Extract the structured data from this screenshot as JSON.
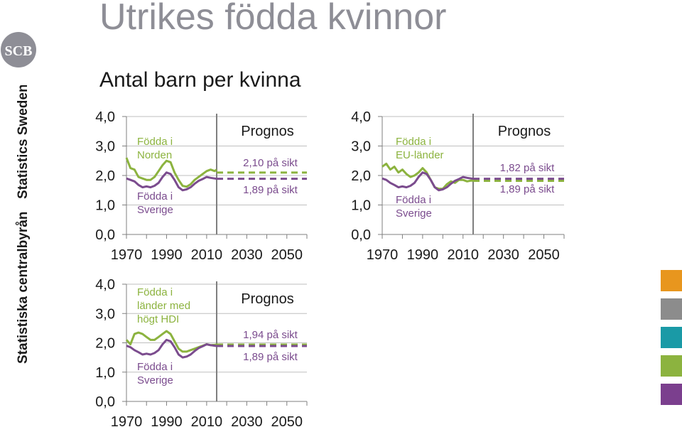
{
  "header": {
    "title": "Utrikes födda kvinnor",
    "subtitle": "Antal barn per kvinna"
  },
  "branding": {
    "logo_text": "SCB",
    "org_name_sv": "Statistiska centralbyrån",
    "org_name_en": "Statistics Sweden"
  },
  "colors": {
    "green": "#8cb33f",
    "purple": "#7b4c8e",
    "axis": "#7f7f7f",
    "grid": "#bfbfbf",
    "text": "#1a1a1a",
    "palette": [
      "#e8961e",
      "#8c8c8c",
      "#1a9aa6",
      "#8cb33f",
      "#7b3f8e"
    ]
  },
  "chart_data": [
    {
      "type": "line",
      "x_ticks": [
        "1970",
        "1990",
        "2010",
        "2030",
        "2050"
      ],
      "y_ticks": [
        "4,0",
        "3,0",
        "2,0",
        "1,0",
        "0,0"
      ],
      "ylim": [
        0,
        4
      ],
      "xlim": [
        1970,
        2060
      ],
      "forecast_start": 2015,
      "forecast_label": "Prognos",
      "series": [
        {
          "name": "Födda i Norden",
          "color": "green",
          "x": [
            1970,
            1972,
            1974,
            1976,
            1978,
            1980,
            1982,
            1984,
            1986,
            1988,
            1990,
            1992,
            1994,
            1996,
            1998,
            2000,
            2002,
            2004,
            2006,
            2008,
            2010,
            2012,
            2014,
            2015
          ],
          "y": [
            2.6,
            2.25,
            2.2,
            1.95,
            1.9,
            1.85,
            1.85,
            1.95,
            2.15,
            2.35,
            2.5,
            2.45,
            2.1,
            1.85,
            1.65,
            1.62,
            1.7,
            1.85,
            1.95,
            2.05,
            2.15,
            2.2,
            2.15,
            2.2
          ],
          "forecast_value": 2.1,
          "forecast_text": "2,10 på sikt"
        },
        {
          "name": "Födda i Sverige",
          "color": "purple",
          "x": [
            1970,
            1972,
            1974,
            1976,
            1978,
            1980,
            1982,
            1984,
            1986,
            1988,
            1990,
            1992,
            1994,
            1996,
            1998,
            2000,
            2002,
            2004,
            2006,
            2008,
            2010,
            2012,
            2014,
            2015
          ],
          "y": [
            1.9,
            1.85,
            1.8,
            1.68,
            1.6,
            1.63,
            1.6,
            1.65,
            1.75,
            1.95,
            2.1,
            2.05,
            1.85,
            1.6,
            1.5,
            1.53,
            1.6,
            1.72,
            1.82,
            1.88,
            1.95,
            1.92,
            1.9,
            1.89
          ],
          "forecast_value": 1.89,
          "forecast_text": "1,89 på sikt"
        }
      ]
    },
    {
      "type": "line",
      "x_ticks": [
        "1970",
        "1990",
        "2010",
        "2030",
        "2050"
      ],
      "y_ticks": [
        "4,0",
        "3,0",
        "2,0",
        "1,0",
        "0,0"
      ],
      "ylim": [
        0,
        4
      ],
      "xlim": [
        1970,
        2060
      ],
      "forecast_start": 2015,
      "forecast_label": "Prognos",
      "series": [
        {
          "name": "Födda i EU-länder",
          "color": "green",
          "x": [
            1970,
            1972,
            1974,
            1976,
            1978,
            1980,
            1982,
            1984,
            1986,
            1988,
            1990,
            1992,
            1994,
            1996,
            1998,
            2000,
            2002,
            2004,
            2006,
            2008,
            2010,
            2012,
            2014,
            2015
          ],
          "y": [
            2.3,
            2.4,
            2.2,
            2.3,
            2.1,
            2.2,
            2.05,
            1.95,
            2.0,
            2.1,
            2.25,
            2.1,
            1.85,
            1.6,
            1.55,
            1.55,
            1.7,
            1.8,
            1.75,
            1.85,
            1.85,
            1.8,
            1.83,
            1.82
          ],
          "forecast_value": 1.82,
          "forecast_text": "1,82 på sikt"
        },
        {
          "name": "Födda i Sverige",
          "color": "purple",
          "x": [
            1970,
            1972,
            1974,
            1976,
            1978,
            1980,
            1982,
            1984,
            1986,
            1988,
            1990,
            1992,
            1994,
            1996,
            1998,
            2000,
            2002,
            2004,
            2006,
            2008,
            2010,
            2012,
            2014,
            2015
          ],
          "y": [
            1.9,
            1.85,
            1.75,
            1.68,
            1.6,
            1.63,
            1.6,
            1.65,
            1.75,
            1.95,
            2.1,
            2.05,
            1.85,
            1.6,
            1.5,
            1.53,
            1.6,
            1.72,
            1.82,
            1.88,
            1.95,
            1.92,
            1.9,
            1.89
          ],
          "forecast_value": 1.89,
          "forecast_text": "1,89 på sikt"
        }
      ]
    },
    {
      "type": "line",
      "x_ticks": [
        "1970",
        "1990",
        "2010",
        "2030",
        "2050"
      ],
      "y_ticks": [
        "4,0",
        "3,0",
        "2,0",
        "1,0",
        "0,0"
      ],
      "ylim": [
        0,
        4
      ],
      "xlim": [
        1970,
        2060
      ],
      "forecast_start": 2015,
      "forecast_label": "Prognos",
      "series": [
        {
          "name": "Födda i länder med högt HDI",
          "color": "green",
          "x": [
            1970,
            1972,
            1974,
            1976,
            1978,
            1980,
            1982,
            1984,
            1986,
            1988,
            1990,
            1992,
            1994,
            1996,
            1998,
            2000,
            2002,
            2004,
            2006,
            2008,
            2010,
            2012,
            2014,
            2015
          ],
          "y": [
            2.1,
            1.95,
            2.3,
            2.35,
            2.3,
            2.2,
            2.1,
            2.1,
            2.2,
            2.3,
            2.4,
            2.3,
            2.05,
            1.8,
            1.7,
            1.7,
            1.75,
            1.8,
            1.85,
            1.9,
            1.95,
            1.92,
            1.93,
            1.94
          ],
          "forecast_value": 1.94,
          "forecast_text": "1,94 på sikt"
        },
        {
          "name": "Födda i Sverige",
          "color": "purple",
          "x": [
            1970,
            1972,
            1974,
            1976,
            1978,
            1980,
            1982,
            1984,
            1986,
            1988,
            1990,
            1992,
            1994,
            1996,
            1998,
            2000,
            2002,
            2004,
            2006,
            2008,
            2010,
            2012,
            2014,
            2015
          ],
          "y": [
            1.9,
            1.85,
            1.75,
            1.68,
            1.6,
            1.63,
            1.6,
            1.65,
            1.75,
            1.95,
            2.1,
            2.05,
            1.85,
            1.6,
            1.5,
            1.53,
            1.6,
            1.72,
            1.82,
            1.88,
            1.95,
            1.92,
            1.9,
            1.89
          ],
          "forecast_value": 1.89,
          "forecast_text": "1,89 på sikt"
        }
      ]
    }
  ]
}
